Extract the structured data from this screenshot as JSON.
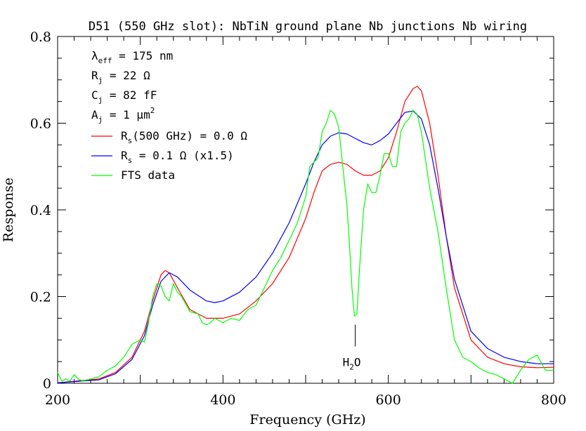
{
  "chart_data": {
    "type": "line",
    "title": "D51 (550 GHz slot):  NbTiN ground plane  Nb junctions  Nb wiring",
    "xlabel": "Frequency (GHz)",
    "ylabel": "Response",
    "xlim": [
      200,
      800
    ],
    "ylim": [
      0,
      0.8
    ],
    "xticks": [
      "200",
      "400",
      "600",
      "800"
    ],
    "xtick_values": [
      200,
      400,
      600,
      800
    ],
    "yticks": [
      "0",
      "0.2",
      "0.4",
      "0.6",
      "0.8"
    ],
    "ytick_values": [
      0,
      0.2,
      0.4,
      0.6,
      0.8
    ],
    "params": [
      {
        "sym": "λ",
        "sub": "eff",
        "rest": " = 175 nm"
      },
      {
        "sym": "R",
        "sub": "j",
        "rest": " = 22 Ω"
      },
      {
        "sym": "C",
        "sub": "j",
        "rest": " = 82 fF"
      },
      {
        "sym": "A",
        "sub": "j",
        "rest": " = 1 μm",
        "sup": "2"
      }
    ],
    "annotation": {
      "sym": "H",
      "sub": "2",
      "rest": "O",
      "x": 560,
      "line_from_y": 0.135,
      "line_to_y": 0.085
    },
    "series": [
      {
        "name": "R_s(500 GHz) = 0.0 Ω",
        "legend": {
          "sym": "R",
          "sub": "s",
          "rest": "(500 GHz) = 0.0 Ω"
        },
        "color": "#ff0000",
        "x": [
          200,
          250,
          270,
          290,
          305,
          315,
          325,
          330,
          335,
          345,
          360,
          380,
          400,
          420,
          440,
          460,
          480,
          500,
          510,
          520,
          530,
          540,
          550,
          560,
          570,
          580,
          590,
          600,
          610,
          620,
          630,
          635,
          640,
          650,
          660,
          670,
          680,
          700,
          720,
          740,
          760,
          780,
          800
        ],
        "y": [
          0.001,
          0.01,
          0.025,
          0.06,
          0.12,
          0.19,
          0.25,
          0.26,
          0.255,
          0.22,
          0.17,
          0.15,
          0.15,
          0.16,
          0.19,
          0.23,
          0.29,
          0.38,
          0.44,
          0.49,
          0.505,
          0.51,
          0.505,
          0.49,
          0.48,
          0.48,
          0.49,
          0.52,
          0.58,
          0.65,
          0.68,
          0.685,
          0.675,
          0.6,
          0.48,
          0.34,
          0.22,
          0.1,
          0.06,
          0.045,
          0.038,
          0.036,
          0.037
        ]
      },
      {
        "name": "R_s = 0.1 Ω  (x1.5)",
        "legend": {
          "sym": "R",
          "sub": "s",
          "rest": " = 0.1 Ω  (x1.5)"
        },
        "color": "#0000ff",
        "x": [
          200,
          250,
          270,
          290,
          305,
          315,
          325,
          335,
          345,
          360,
          380,
          390,
          400,
          420,
          440,
          460,
          480,
          500,
          510,
          520,
          530,
          540,
          550,
          560,
          570,
          580,
          590,
          600,
          610,
          620,
          630,
          640,
          650,
          660,
          670,
          680,
          700,
          720,
          740,
          760,
          780,
          800
        ],
        "y": [
          0.001,
          0.008,
          0.022,
          0.055,
          0.11,
          0.18,
          0.235,
          0.255,
          0.245,
          0.215,
          0.19,
          0.186,
          0.19,
          0.21,
          0.245,
          0.3,
          0.37,
          0.46,
          0.51,
          0.55,
          0.57,
          0.578,
          0.575,
          0.565,
          0.555,
          0.55,
          0.56,
          0.575,
          0.6,
          0.625,
          0.628,
          0.61,
          0.55,
          0.45,
          0.34,
          0.24,
          0.12,
          0.08,
          0.06,
          0.05,
          0.045,
          0.045
        ]
      },
      {
        "name": "FTS data",
        "legend": {
          "sym": "FTS data",
          "sub": "",
          "rest": ""
        },
        "color": "#00ff00",
        "x": [
          200,
          205,
          210,
          215,
          220,
          225,
          230,
          240,
          250,
          260,
          270,
          280,
          290,
          300,
          305,
          310,
          315,
          320,
          325,
          330,
          335,
          340,
          345,
          350,
          360,
          370,
          375,
          380,
          385,
          390,
          400,
          410,
          420,
          430,
          440,
          450,
          460,
          470,
          480,
          490,
          500,
          505,
          510,
          515,
          520,
          525,
          530,
          535,
          540,
          545,
          550,
          553,
          556,
          559,
          562,
          565,
          570,
          575,
          580,
          585,
          590,
          595,
          600,
          605,
          610,
          615,
          620,
          625,
          630,
          635,
          640,
          650,
          660,
          670,
          680,
          690,
          700,
          710,
          720,
          730,
          740,
          750,
          760,
          770,
          780,
          790,
          800
        ],
        "y": [
          0.025,
          0.005,
          0.01,
          0.005,
          0.02,
          0.01,
          0.005,
          0.01,
          0.015,
          0.03,
          0.04,
          0.06,
          0.09,
          0.1,
          0.095,
          0.14,
          0.2,
          0.23,
          0.225,
          0.2,
          0.19,
          0.23,
          0.21,
          0.2,
          0.165,
          0.16,
          0.14,
          0.135,
          0.14,
          0.15,
          0.14,
          0.15,
          0.145,
          0.17,
          0.18,
          0.22,
          0.26,
          0.29,
          0.33,
          0.37,
          0.43,
          0.5,
          0.51,
          0.52,
          0.58,
          0.6,
          0.63,
          0.62,
          0.59,
          0.5,
          0.41,
          0.32,
          0.22,
          0.155,
          0.16,
          0.26,
          0.4,
          0.46,
          0.44,
          0.44,
          0.48,
          0.53,
          0.53,
          0.5,
          0.5,
          0.58,
          0.6,
          0.61,
          0.63,
          0.62,
          0.58,
          0.45,
          0.35,
          0.22,
          0.1,
          0.06,
          0.05,
          0.035,
          0.025,
          0.02,
          0.01,
          0.0,
          0.03,
          0.055,
          0.065,
          0.03,
          0.03
        ]
      }
    ]
  }
}
